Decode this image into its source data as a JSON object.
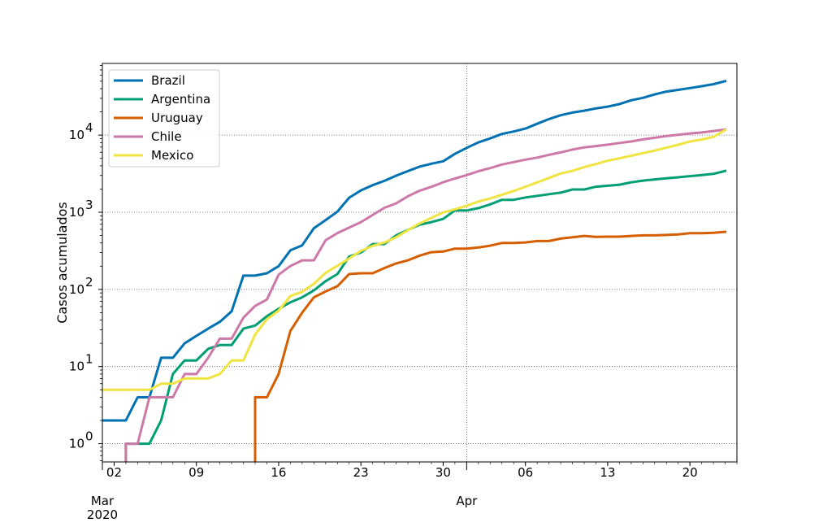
{
  "chart_data": {
    "type": "line",
    "title": "",
    "xlabel": "",
    "ylabel": "Casos acumulados",
    "yscale": "log",
    "ylim": [
      0.58,
      85000
    ],
    "xlim": [
      "2020-03-01",
      "2020-04-24"
    ],
    "grid": "dotted lines at labelled ticks",
    "legend_position": "upper-left",
    "x_tick_labels": [
      {
        "date": "2020-03-02",
        "label": "02"
      },
      {
        "date": "2020-03-09",
        "label": "09"
      },
      {
        "date": "2020-03-16",
        "label": "16"
      },
      {
        "date": "2020-03-23",
        "label": "23"
      },
      {
        "date": "2020-03-30",
        "label": "30"
      },
      {
        "date": "2020-04-06",
        "label": "06"
      },
      {
        "date": "2020-04-13",
        "label": "13"
      },
      {
        "date": "2020-04-20",
        "label": "20"
      }
    ],
    "x_month_labels": [
      {
        "date": "2020-03-01",
        "label": "Mar",
        "sublabel": "2020"
      },
      {
        "date": "2020-04-01",
        "label": "Apr",
        "sublabel": ""
      }
    ],
    "y_tick_labels": [
      {
        "value": 1,
        "label": "10",
        "exp": "0"
      },
      {
        "value": 10,
        "label": "10",
        "exp": "1"
      },
      {
        "value": 100,
        "label": "10",
        "exp": "2"
      },
      {
        "value": 1000,
        "label": "10",
        "exp": "3"
      },
      {
        "value": 10000,
        "label": "10",
        "exp": "4"
      }
    ],
    "series": [
      {
        "name": "Brazil",
        "color": "#0072b2",
        "points": [
          [
            "2020-03-01",
            2
          ],
          [
            "2020-03-03",
            2
          ],
          [
            "2020-03-04",
            4
          ],
          [
            "2020-03-05",
            4
          ],
          [
            "2020-03-06",
            13
          ],
          [
            "2020-03-07",
            13
          ],
          [
            "2020-03-08",
            20
          ],
          [
            "2020-03-09",
            25
          ],
          [
            "2020-03-10",
            31
          ],
          [
            "2020-03-11",
            38
          ],
          [
            "2020-03-12",
            52
          ],
          [
            "2020-03-13",
            151
          ],
          [
            "2020-03-14",
            151
          ],
          [
            "2020-03-15",
            162
          ],
          [
            "2020-03-16",
            200
          ],
          [
            "2020-03-17",
            321
          ],
          [
            "2020-03-18",
            372
          ],
          [
            "2020-03-19",
            621
          ],
          [
            "2020-03-20",
            793
          ],
          [
            "2020-03-21",
            1021
          ],
          [
            "2020-03-22",
            1546
          ],
          [
            "2020-03-23",
            1924
          ],
          [
            "2020-03-24",
            2247
          ],
          [
            "2020-03-25",
            2554
          ],
          [
            "2020-03-26",
            2985
          ],
          [
            "2020-03-27",
            3417
          ],
          [
            "2020-03-28",
            3904
          ],
          [
            "2020-03-29",
            4256
          ],
          [
            "2020-03-30",
            4579
          ],
          [
            "2020-03-31",
            5717
          ],
          [
            "2020-04-01",
            6836
          ],
          [
            "2020-04-02",
            8044
          ],
          [
            "2020-04-03",
            9056
          ],
          [
            "2020-04-04",
            10360
          ],
          [
            "2020-04-05",
            11130
          ],
          [
            "2020-04-06",
            12161
          ],
          [
            "2020-04-07",
            14034
          ],
          [
            "2020-04-08",
            16170
          ],
          [
            "2020-04-09",
            18092
          ],
          [
            "2020-04-10",
            19638
          ],
          [
            "2020-04-11",
            20727
          ],
          [
            "2020-04-12",
            22192
          ],
          [
            "2020-04-13",
            23430
          ],
          [
            "2020-04-14",
            25262
          ],
          [
            "2020-04-15",
            28320
          ],
          [
            "2020-04-16",
            30425
          ],
          [
            "2020-04-17",
            33682
          ],
          [
            "2020-04-18",
            36658
          ],
          [
            "2020-04-19",
            38654
          ],
          [
            "2020-04-20",
            40743
          ],
          [
            "2020-04-21",
            43079
          ],
          [
            "2020-04-22",
            45757
          ],
          [
            "2020-04-23",
            50036
          ]
        ]
      },
      {
        "name": "Argentina",
        "color": "#009e73",
        "points": [
          [
            "2020-03-03",
            1
          ],
          [
            "2020-03-04",
            1
          ],
          [
            "2020-03-05",
            1
          ],
          [
            "2020-03-06",
            2
          ],
          [
            "2020-03-07",
            8
          ],
          [
            "2020-03-08",
            12
          ],
          [
            "2020-03-09",
            12
          ],
          [
            "2020-03-10",
            17
          ],
          [
            "2020-03-11",
            19
          ],
          [
            "2020-03-12",
            19
          ],
          [
            "2020-03-13",
            31
          ],
          [
            "2020-03-14",
            34
          ],
          [
            "2020-03-15",
            45
          ],
          [
            "2020-03-16",
            56
          ],
          [
            "2020-03-17",
            68
          ],
          [
            "2020-03-18",
            79
          ],
          [
            "2020-03-19",
            97
          ],
          [
            "2020-03-20",
            128
          ],
          [
            "2020-03-21",
            158
          ],
          [
            "2020-03-22",
            266
          ],
          [
            "2020-03-23",
            301
          ],
          [
            "2020-03-24",
            387
          ],
          [
            "2020-03-25",
            387
          ],
          [
            "2020-03-26",
            502
          ],
          [
            "2020-03-27",
            589
          ],
          [
            "2020-03-28",
            690
          ],
          [
            "2020-03-29",
            745
          ],
          [
            "2020-03-30",
            820
          ],
          [
            "2020-03-31",
            1054
          ],
          [
            "2020-04-01",
            1054
          ],
          [
            "2020-04-02",
            1133
          ],
          [
            "2020-04-03",
            1265
          ],
          [
            "2020-04-04",
            1451
          ],
          [
            "2020-04-05",
            1451
          ],
          [
            "2020-04-06",
            1554
          ],
          [
            "2020-04-07",
            1628
          ],
          [
            "2020-04-08",
            1715
          ],
          [
            "2020-04-09",
            1795
          ],
          [
            "2020-04-10",
            1975
          ],
          [
            "2020-04-11",
            1975
          ],
          [
            "2020-04-12",
            2142
          ],
          [
            "2020-04-13",
            2208
          ],
          [
            "2020-04-14",
            2277
          ],
          [
            "2020-04-15",
            2443
          ],
          [
            "2020-04-16",
            2571
          ],
          [
            "2020-04-17",
            2669
          ],
          [
            "2020-04-18",
            2758
          ],
          [
            "2020-04-19",
            2839
          ],
          [
            "2020-04-20",
            2941
          ],
          [
            "2020-04-21",
            3031
          ],
          [
            "2020-04-22",
            3144
          ],
          [
            "2020-04-23",
            3435
          ]
        ]
      },
      {
        "name": "Uruguay",
        "color": "#d55e00",
        "points": [
          [
            "2020-03-14",
            4
          ],
          [
            "2020-03-15",
            4
          ],
          [
            "2020-03-16",
            8
          ],
          [
            "2020-03-17",
            29
          ],
          [
            "2020-03-18",
            50
          ],
          [
            "2020-03-19",
            79
          ],
          [
            "2020-03-20",
            94
          ],
          [
            "2020-03-21",
            110
          ],
          [
            "2020-03-22",
            158
          ],
          [
            "2020-03-23",
            162
          ],
          [
            "2020-03-24",
            162
          ],
          [
            "2020-03-25",
            189
          ],
          [
            "2020-03-26",
            217
          ],
          [
            "2020-03-27",
            238
          ],
          [
            "2020-03-28",
            274
          ],
          [
            "2020-03-29",
            304
          ],
          [
            "2020-03-30",
            310
          ],
          [
            "2020-03-31",
            338
          ],
          [
            "2020-04-01",
            338
          ],
          [
            "2020-04-02",
            350
          ],
          [
            "2020-04-03",
            369
          ],
          [
            "2020-04-04",
            400
          ],
          [
            "2020-04-05",
            400
          ],
          [
            "2020-04-06",
            406
          ],
          [
            "2020-04-07",
            424
          ],
          [
            "2020-04-08",
            424
          ],
          [
            "2020-04-09",
            456
          ],
          [
            "2020-04-10",
            473
          ],
          [
            "2020-04-11",
            494
          ],
          [
            "2020-04-12",
            480
          ],
          [
            "2020-04-13",
            483
          ],
          [
            "2020-04-14",
            483
          ],
          [
            "2020-04-15",
            493
          ],
          [
            "2020-04-16",
            502
          ],
          [
            "2020-04-17",
            502
          ],
          [
            "2020-04-18",
            508
          ],
          [
            "2020-04-19",
            517
          ],
          [
            "2020-04-20",
            535
          ],
          [
            "2020-04-21",
            535
          ],
          [
            "2020-04-22",
            543
          ],
          [
            "2020-04-23",
            557
          ]
        ]
      },
      {
        "name": "Chile",
        "color": "#cc79a7",
        "points": [
          [
            "2020-03-03",
            1
          ],
          [
            "2020-03-04",
            1
          ],
          [
            "2020-03-05",
            4
          ],
          [
            "2020-03-06",
            4
          ],
          [
            "2020-03-07",
            4
          ],
          [
            "2020-03-08",
            8
          ],
          [
            "2020-03-09",
            8
          ],
          [
            "2020-03-10",
            13
          ],
          [
            "2020-03-11",
            23
          ],
          [
            "2020-03-12",
            23
          ],
          [
            "2020-03-13",
            43
          ],
          [
            "2020-03-14",
            61
          ],
          [
            "2020-03-15",
            74
          ],
          [
            "2020-03-16",
            155
          ],
          [
            "2020-03-17",
            201
          ],
          [
            "2020-03-18",
            238
          ],
          [
            "2020-03-19",
            238
          ],
          [
            "2020-03-20",
            434
          ],
          [
            "2020-03-21",
            537
          ],
          [
            "2020-03-22",
            632
          ],
          [
            "2020-03-23",
            746
          ],
          [
            "2020-03-24",
            922
          ],
          [
            "2020-03-25",
            1142
          ],
          [
            "2020-03-26",
            1306
          ],
          [
            "2020-03-27",
            1610
          ],
          [
            "2020-03-28",
            1909
          ],
          [
            "2020-03-29",
            2139
          ],
          [
            "2020-03-30",
            2449
          ],
          [
            "2020-03-31",
            2738
          ],
          [
            "2020-04-01",
            3031
          ],
          [
            "2020-04-02",
            3404
          ],
          [
            "2020-04-03",
            3737
          ],
          [
            "2020-04-04",
            4161
          ],
          [
            "2020-04-05",
            4471
          ],
          [
            "2020-04-06",
            4815
          ],
          [
            "2020-04-07",
            5116
          ],
          [
            "2020-04-08",
            5546
          ],
          [
            "2020-04-09",
            5972
          ],
          [
            "2020-04-10",
            6501
          ],
          [
            "2020-04-11",
            6927
          ],
          [
            "2020-04-12",
            7213
          ],
          [
            "2020-04-13",
            7525
          ],
          [
            "2020-04-14",
            7917
          ],
          [
            "2020-04-15",
            8273
          ],
          [
            "2020-04-16",
            8807
          ],
          [
            "2020-04-17",
            9252
          ],
          [
            "2020-04-18",
            9730
          ],
          [
            "2020-04-19",
            10088
          ],
          [
            "2020-04-20",
            10507
          ],
          [
            "2020-04-21",
            10832
          ],
          [
            "2020-04-22",
            11296
          ],
          [
            "2020-04-23",
            11812
          ]
        ]
      },
      {
        "name": "Mexico",
        "color": "#f0e442",
        "points": [
          [
            "2020-03-01",
            5
          ],
          [
            "2020-03-05",
            5
          ],
          [
            "2020-03-06",
            6
          ],
          [
            "2020-03-07",
            6
          ],
          [
            "2020-03-08",
            7
          ],
          [
            "2020-03-10",
            7
          ],
          [
            "2020-03-11",
            8
          ],
          [
            "2020-03-12",
            12
          ],
          [
            "2020-03-13",
            12
          ],
          [
            "2020-03-14",
            26
          ],
          [
            "2020-03-15",
            41
          ],
          [
            "2020-03-16",
            53
          ],
          [
            "2020-03-17",
            82
          ],
          [
            "2020-03-18",
            93
          ],
          [
            "2020-03-19",
            118
          ],
          [
            "2020-03-20",
            164
          ],
          [
            "2020-03-21",
            203
          ],
          [
            "2020-03-22",
            251
          ],
          [
            "2020-03-23",
            316
          ],
          [
            "2020-03-24",
            367
          ],
          [
            "2020-03-25",
            405
          ],
          [
            "2020-03-26",
            475
          ],
          [
            "2020-03-27",
            585
          ],
          [
            "2020-03-28",
            717
          ],
          [
            "2020-03-29",
            848
          ],
          [
            "2020-03-30",
            993
          ],
          [
            "2020-03-31",
            1094
          ],
          [
            "2020-04-01",
            1215
          ],
          [
            "2020-04-02",
            1378
          ],
          [
            "2020-04-03",
            1510
          ],
          [
            "2020-04-04",
            1688
          ],
          [
            "2020-04-05",
            1890
          ],
          [
            "2020-04-06",
            2143
          ],
          [
            "2020-04-07",
            2439
          ],
          [
            "2020-04-08",
            2785
          ],
          [
            "2020-04-09",
            3181
          ],
          [
            "2020-04-10",
            3441
          ],
          [
            "2020-04-11",
            3844
          ],
          [
            "2020-04-12",
            4219
          ],
          [
            "2020-04-13",
            4661
          ],
          [
            "2020-04-14",
            5014
          ],
          [
            "2020-04-15",
            5399
          ],
          [
            "2020-04-16",
            5847
          ],
          [
            "2020-04-17",
            6297
          ],
          [
            "2020-04-18",
            6875
          ],
          [
            "2020-04-19",
            7497
          ],
          [
            "2020-04-20",
            8261
          ],
          [
            "2020-04-21",
            8772
          ],
          [
            "2020-04-22",
            9501
          ],
          [
            "2020-04-23",
            11633
          ]
        ]
      }
    ]
  }
}
